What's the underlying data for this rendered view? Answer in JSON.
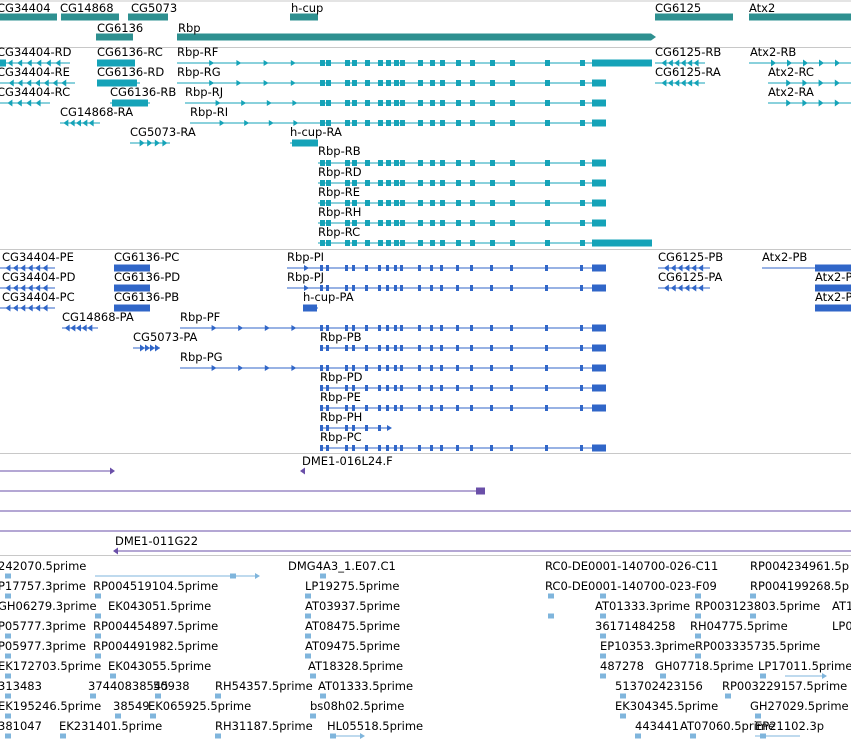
{
  "colors": {
    "gene": "#2e9090",
    "transcript": "#15a3b8",
    "protein": "#3066c8",
    "clone": "#6a4fa8",
    "est": "#7fb5dc",
    "separator": "#c8c8c8"
  },
  "sections": {
    "genes": [
      "CG34404",
      "CG14868",
      "CG5073",
      "h-cup",
      "CG6125",
      "Atx2",
      "CG6136",
      "Rbp"
    ],
    "transcripts": [
      "CG34404-RD",
      "CG6136-RC",
      "Rbp-RF",
      "CG6125-RB",
      "Atx2-RB",
      "CG34404-RE",
      "CG6136-RD",
      "Rbp-RG",
      "CG6125-RA",
      "Atx2-RC",
      "CG34404-RC",
      "CG6136-RB",
      "Rbp-RJ",
      "Atx2-RA",
      "CG14868-RA",
      "Rbp-RI",
      "CG5073-RA",
      "h-cup-RA",
      "Rbp-RB",
      "Rbp-RD",
      "Rbp-RE",
      "Rbp-RH",
      "Rbp-RC"
    ],
    "proteins": [
      "CG34404-PE",
      "CG6136-PC",
      "Rbp-PI",
      "CG6125-PB",
      "Atx2-PB",
      "CG34404-PD",
      "CG6136-PD",
      "Rbp-PJ",
      "CG6125-PA",
      "Atx2-P",
      "CG34404-PC",
      "CG6136-PB",
      "h-cup-PA",
      "Atx2-P",
      "CG14868-PA",
      "Rbp-PF",
      "CG5073-PA",
      "Rbp-PB",
      "Rbp-PG",
      "Rbp-PD",
      "Rbp-PE",
      "Rbp-PH",
      "Rbp-PC"
    ],
    "clones": [
      "DME1-016L24.F",
      "DME1-011G22"
    ],
    "ests": [
      "242070.5prime",
      "DMG4A3_1.E07.C1",
      "RC0-DE0001-140700-026-C11",
      "RP004234961.5p",
      "P17757.3prime",
      "RP004519104.5prime",
      "LP19275.5prime",
      "RC0-DE0001-140700-023-F09",
      "RP004199268.5p",
      "GH06279.3prime",
      "EK043051.5prime",
      "AT03937.5prime",
      "AT01333.3prime",
      "RP003123803.5prime",
      "AT1",
      "P05777.3prime",
      "RP004454897.5prime",
      "AT08475.5prime",
      "36171484258",
      "RH04775.5prime",
      "LP0",
      "P05977.3prime",
      "RP004491982.5prime",
      "AT09475.5prime",
      "EP10353.3prime",
      "RP003335735.5prime",
      "EK172703.5prime",
      "EK043055.5prime",
      "AT18328.5prime",
      "487278",
      "GH07718.5prime",
      "LP17011.5prime",
      "313483",
      "37440838545",
      "50938",
      "RH54357.5prime",
      "AT01333.5prime",
      "513702423156",
      "RP003229157.5prime",
      "EK195246.5prime",
      "38549",
      "EK065925.5prime",
      "bs08h02.5prime",
      "EK304345.5prime",
      "GH27029.5prime",
      "381047",
      "EK231401.5prime",
      "RH31187.5prime",
      "HL05518.5prime",
      "443441",
      "AT07060.5prime",
      "EP21102.3p"
    ]
  }
}
